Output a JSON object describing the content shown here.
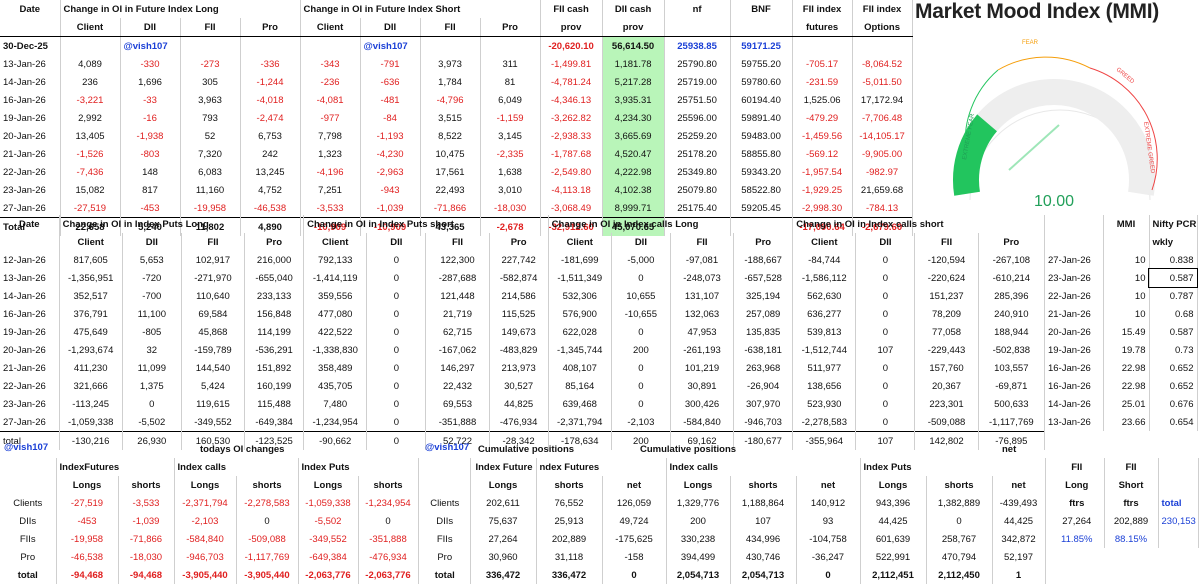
{
  "fut": {
    "date_hdr": "Date",
    "g1": "Change in OI in Future Index Long",
    "g2": "Change in OI in Future Index Short",
    "cols": [
      "Client",
      "DII",
      "FII",
      "Pro",
      "Client",
      "DII",
      "FII",
      "Pro"
    ],
    "cash": [
      "FII cash",
      "DII cash",
      "nf",
      "BNF",
      "FII index",
      "FII index"
    ],
    "cash2": [
      "prov",
      "prov",
      "",
      "",
      "futures",
      "Options"
    ],
    "row0": {
      "d": "30-Dec-25",
      "h1": "@vish107",
      "h2": "@vish107",
      "v": [
        "-20,620.10",
        "56,614.50",
        "25938.85",
        "59171.25",
        "",
        ""
      ]
    },
    "rows": [
      {
        "d": "13-Jan-26",
        "v": [
          "4,089",
          "-330",
          "-273",
          "-336",
          "-343",
          "-791",
          "3,973",
          "311",
          "-1,499.81",
          "1,181.78",
          "25790.80",
          "59755.20",
          "-705.17",
          "-8,064.52"
        ]
      },
      {
        "d": "14-Jan-26",
        "v": [
          "236",
          "1,696",
          "305",
          "-1,244",
          "-236",
          "-636",
          "1,784",
          "81",
          "-4,781.24",
          "5,217.28",
          "25719.00",
          "59780.60",
          "-231.59",
          "-5,011.50"
        ]
      },
      {
        "d": "16-Jan-26",
        "v": [
          "-3,221",
          "-33",
          "3,963",
          "-4,018",
          "-4,081",
          "-481",
          "-4,796",
          "6,049",
          "-4,346.13",
          "3,935.31",
          "25751.50",
          "60194.40",
          "1,525.06",
          "17,172.94"
        ]
      },
      {
        "d": "19-Jan-26",
        "v": [
          "2,992",
          "-16",
          "793",
          "-2,474",
          "-977",
          "-84",
          "3,515",
          "-1,159",
          "-3,262.82",
          "4,234.30",
          "25596.00",
          "59891.40",
          "-479.29",
          "-7,706.48"
        ]
      },
      {
        "d": "20-Jan-26",
        "v": [
          "13,405",
          "-1,938",
          "52",
          "6,753",
          "7,798",
          "-1,193",
          "8,522",
          "3,145",
          "-2,938.33",
          "3,665.69",
          "25259.20",
          "59483.00",
          "-1,459.56",
          "-14,105.17"
        ]
      },
      {
        "d": "21-Jan-26",
        "v": [
          "-1,526",
          "-803",
          "7,320",
          "242",
          "1,323",
          "-4,230",
          "10,475",
          "-2,335",
          "-1,787.68",
          "4,520.47",
          "25178.20",
          "58855.80",
          "-569.12",
          "-9,905.00"
        ]
      },
      {
        "d": "22-Jan-26",
        "v": [
          "-7,436",
          "148",
          "6,083",
          "13,245",
          "-4,196",
          "-2,963",
          "17,561",
          "1,638",
          "-2,549.80",
          "4,222.98",
          "25349.80",
          "59343.20",
          "-1,957.54",
          "-982.97"
        ]
      },
      {
        "d": "23-Jan-26",
        "v": [
          "15,082",
          "817",
          "11,160",
          "4,752",
          "7,251",
          "-943",
          "22,493",
          "3,010",
          "-4,113.18",
          "4,102.38",
          "25079.80",
          "58522.80",
          "-1,929.25",
          "21,659.68"
        ]
      },
      {
        "d": "27-Jan-26",
        "v": [
          "-27,519",
          "-453",
          "-19,958",
          "-46,538",
          "-3,533",
          "-1,039",
          "-71,866",
          "-18,030",
          "-3,068.49",
          "8,999.71",
          "25175.40",
          "59205.45",
          "-2,998.30",
          "-784.13"
        ]
      }
    ],
    "total": {
      "d": "Total",
      "v": [
        "22,658",
        "5,240",
        "11,802",
        "4,890",
        "-10,909",
        "-10,909",
        "43,365",
        "-2,678",
        "-32,912.60",
        "45,070.65",
        "",
        "",
        "-17,090.64",
        "-2,679.60"
      ]
    }
  },
  "mmi": {
    "title": "Market Mood Index (MMI)",
    "value": "10.00",
    "fear": "FEAR",
    "greed": "GREED",
    "extreme_fear": "EXTREME FEAR",
    "extreme_greed": "EXTREME GREED",
    "level": 0.1,
    "hdr": "MMI",
    "pcr_hdr": "Nifty PCR",
    "wkly": "wkly",
    "rows": [
      {
        "d": "27-Jan-26",
        "m": "10",
        "p": "0.838"
      },
      {
        "d": "23-Jan-26",
        "m": "10",
        "p": "0.587"
      },
      {
        "d": "22-Jan-26",
        "m": "10",
        "p": "0.787"
      },
      {
        "d": "21-Jan-26",
        "m": "10",
        "p": "0.68"
      },
      {
        "d": "20-Jan-26",
        "m": "15.49",
        "p": "0.587"
      },
      {
        "d": "19-Jan-26",
        "m": "19.78",
        "p": "0.73"
      },
      {
        "d": "16-Jan-26",
        "m": "22.98",
        "p": "0.652"
      },
      {
        "d": "16-Jan-26",
        "m": "22.98",
        "p": "0.652"
      },
      {
        "d": "14-Jan-26",
        "m": "25.01",
        "p": "0.676"
      },
      {
        "d": "13-Jan-26",
        "m": "23.66",
        "p": "0.654"
      }
    ]
  },
  "opt": {
    "date_hdr": "Date",
    "g": [
      "Change in OI in Index Puts Long",
      "Change in OI in Index Puts short",
      "Change in OI in Index calls Long",
      "Change in OI in Index calls short"
    ],
    "cols": [
      "Client",
      "DII",
      "FII",
      "Pro"
    ],
    "rows": [
      {
        "d": "12-Jan-26",
        "v": [
          "817,605",
          "5,653",
          "102,917",
          "216,000",
          "792,133",
          "0",
          "122,300",
          "227,742",
          "-181,699",
          "-5,000",
          "-97,081",
          "-188,667",
          "-84,744",
          "0",
          "-120,594",
          "-267,108"
        ]
      },
      {
        "d": "13-Jan-26",
        "v": [
          "-1,356,951",
          "-720",
          "-271,970",
          "-655,040",
          "-1,414,119",
          "0",
          "-287,688",
          "-582,874",
          "-1,511,349",
          "0",
          "-248,073",
          "-657,528",
          "-1,586,112",
          "0",
          "-220,624",
          "-610,214"
        ]
      },
      {
        "d": "14-Jan-26",
        "v": [
          "352,517",
          "-700",
          "110,640",
          "233,133",
          "359,556",
          "0",
          "121,448",
          "214,586",
          "532,306",
          "10,655",
          "131,107",
          "325,194",
          "562,630",
          "0",
          "151,237",
          "285,396"
        ]
      },
      {
        "d": "16-Jan-26",
        "v": [
          "376,791",
          "11,100",
          "69,584",
          "156,848",
          "477,080",
          "0",
          "21,719",
          "115,525",
          "576,900",
          "-10,655",
          "132,063",
          "257,089",
          "636,277",
          "0",
          "78,209",
          "240,910"
        ]
      },
      {
        "d": "19-Jan-26",
        "v": [
          "475,649",
          "-805",
          "45,868",
          "114,199",
          "422,522",
          "0",
          "62,715",
          "149,673",
          "622,028",
          "0",
          "47,953",
          "135,835",
          "539,813",
          "0",
          "77,058",
          "188,944"
        ]
      },
      {
        "d": "20-Jan-26",
        "v": [
          "-1,293,674",
          "32",
          "-159,789",
          "-536,291",
          "-1,338,830",
          "0",
          "-167,062",
          "-483,829",
          "-1,345,744",
          "200",
          "-261,193",
          "-638,181",
          "-1,512,744",
          "107",
          "-229,443",
          "-502,838"
        ]
      },
      {
        "d": "21-Jan-26",
        "v": [
          "411,230",
          "11,099",
          "144,540",
          "151,892",
          "358,489",
          "0",
          "146,297",
          "213,973",
          "408,107",
          "0",
          "101,219",
          "263,968",
          "511,977",
          "0",
          "157,760",
          "103,557"
        ]
      },
      {
        "d": "22-Jan-26",
        "v": [
          "321,666",
          "1,375",
          "5,424",
          "160,199",
          "435,705",
          "0",
          "22,432",
          "30,527",
          "85,164",
          "0",
          "30,891",
          "-26,904",
          "138,656",
          "0",
          "20,367",
          "-69,871"
        ]
      },
      {
        "d": "23-Jan-26",
        "v": [
          "-113,245",
          "0",
          "119,615",
          "115,488",
          "7,480",
          "0",
          "69,553",
          "44,825",
          "639,468",
          "0",
          "300,426",
          "307,970",
          "523,930",
          "0",
          "223,301",
          "500,633"
        ]
      },
      {
        "d": "27-Jan-26",
        "v": [
          "-1,059,338",
          "-5,502",
          "-349,552",
          "-649,384",
          "-1,234,954",
          "0",
          "-351,888",
          "-476,934",
          "-2,371,794",
          "-2,103",
          "-584,840",
          "-946,703",
          "-2,278,583",
          "0",
          "-509,088",
          "-1,117,769"
        ]
      }
    ],
    "total": {
      "d": "total",
      "v": [
        "-130,216",
        "26,930",
        "160,530",
        "-123,525",
        "-90,662",
        "0",
        "52,722",
        "-28,342",
        "-178,634",
        "200",
        "69,162",
        "-180,677",
        "-355,964",
        "107",
        "142,802",
        "-76,895"
      ]
    }
  },
  "sum": {
    "handle": "@vish107",
    "today": "todays OI changes",
    "handle2": "@vish107",
    "cum1": "Cumulative positions",
    "cum2": "Cumulative positions",
    "net": "net",
    "left_groups": [
      "IndexFutures",
      "Index calls",
      "Index Puts"
    ],
    "left_cols": [
      "Longs",
      "shorts",
      "Longs",
      "shorts",
      "Longs",
      "shorts"
    ],
    "left_rows": [
      {
        "n": "Clients",
        "v": [
          "-27,519",
          "-3,533",
          "-2,371,794",
          "-2,278,583",
          "-1,059,338",
          "-1,234,954"
        ]
      },
      {
        "n": "DIIs",
        "v": [
          "-453",
          "-1,039",
          "-2,103",
          "0",
          "-5,502",
          "0"
        ]
      },
      {
        "n": "FIIs",
        "v": [
          "-19,958",
          "-71,866",
          "-584,840",
          "-509,088",
          "-349,552",
          "-351,888"
        ]
      },
      {
        "n": "Pro",
        "v": [
          "-46,538",
          "-18,030",
          "-946,703",
          "-1,117,769",
          "-649,384",
          "-476,934"
        ]
      },
      {
        "n": "total",
        "v": [
          "-94,468",
          "-94,468",
          "-3,905,440",
          "-3,905,440",
          "-2,063,776",
          "-2,063,776"
        ]
      }
    ],
    "right_groups": [
      "Index Future",
      "ndex Futures",
      "Index calls",
      "Index Puts"
    ],
    "right_cols": [
      "Longs",
      "shorts",
      "net",
      "Longs",
      "shorts",
      "net",
      "Longs",
      "shorts",
      "net"
    ],
    "right_rows": [
      {
        "n": "Clients",
        "v": [
          "202,611",
          "76,552",
          "126,059",
          "1,329,776",
          "1,188,864",
          "140,912",
          "943,396",
          "1,382,889",
          "-439,493"
        ]
      },
      {
        "n": "DIIs",
        "v": [
          "75,637",
          "25,913",
          "49,724",
          "200",
          "107",
          "93",
          "44,425",
          "0",
          "44,425"
        ]
      },
      {
        "n": "FIIs",
        "v": [
          "27,264",
          "202,889",
          "-175,625",
          "330,238",
          "434,996",
          "-104,758",
          "601,639",
          "258,767",
          "342,872"
        ]
      },
      {
        "n": "Pro",
        "v": [
          "30,960",
          "31,118",
          "-158",
          "394,499",
          "430,746",
          "-36,247",
          "522,991",
          "470,794",
          "52,197"
        ]
      },
      {
        "n": "total",
        "v": [
          "336,472",
          "336,472",
          "0",
          "2,054,713",
          "2,054,713",
          "0",
          "2,112,451",
          "2,112,450",
          "1"
        ]
      }
    ],
    "fii_box": {
      "h1": "FII",
      "h2": "FII",
      "l1": "Long",
      "l2": "Short",
      "f1": "ftrs",
      "f2": "ftrs",
      "total_lbl": "total",
      "long": "27,264",
      "short": "202,889",
      "total": "230,153",
      "long_pct": "11.85%",
      "short_pct": "88.15%"
    }
  }
}
